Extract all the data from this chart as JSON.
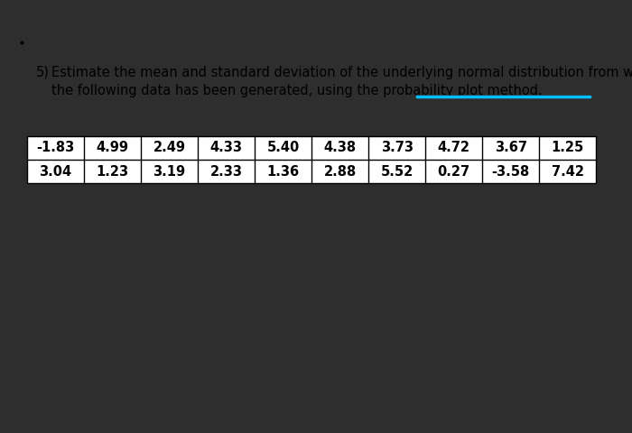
{
  "title_number": "5)",
  "title_text": "Estimate the mean and standard deviation of the underlying normal distribution from which",
  "title_text2": "the following data has been generated, using the probability plot method.",
  "underline_color": "#00bfff",
  "bg_color": "#ffffff",
  "table_row1": [
    "-1.83",
    "4.99",
    "2.49",
    "4.33",
    "5.40",
    "4.38",
    "3.73",
    "4.72",
    "3.67",
    "1.25"
  ],
  "table_row2": [
    "3.04",
    "1.23",
    "3.19",
    "2.33",
    "1.36",
    "2.88",
    "5.52",
    "0.27",
    "-3.58",
    "7.42"
  ],
  "table_border_color": "#000000",
  "table_text_color": "#000000",
  "outer_bg": "#2e2e2e",
  "text_color": "#000000",
  "font_size_title": 10.5,
  "font_size_table": 10.5
}
